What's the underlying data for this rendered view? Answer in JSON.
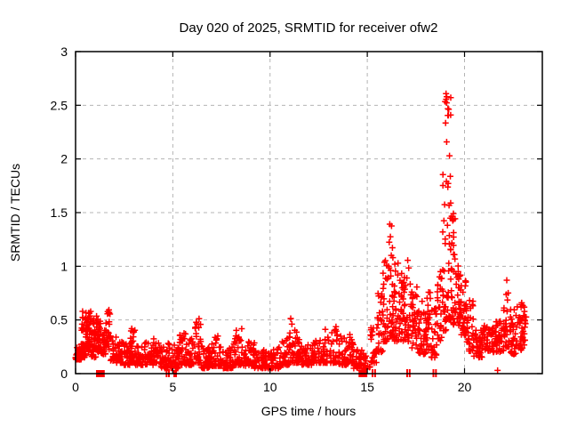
{
  "window": {
    "background_color": "#ffffff"
  },
  "chart_data": {
    "type": "scatter",
    "title": "Day 020 of 2025, SRMTID for receiver ofw2",
    "xlabel": "GPS time / hours",
    "ylabel": "SRMTID / TECUs",
    "xlim": [
      0,
      24
    ],
    "ylim": [
      0,
      3
    ],
    "xticks": [
      0,
      5,
      10,
      15,
      20
    ],
    "yticks": [
      0,
      0.5,
      1,
      1.5,
      2,
      2.5,
      3
    ],
    "grid": true,
    "legend_position": "none",
    "marker": {
      "shape": "plus",
      "color": "#ff0000",
      "size": 7
    },
    "series_name": "SRMTID",
    "colors": {
      "marker": "#ff0000",
      "grid": "#b4b4b4",
      "axis": "#000000",
      "background": "#ffffff"
    },
    "density_bins_comment": "Envelope of the ~2880-point 30s-cadence scatter: [x_start_hr, x_end_hr, y_min_TECU, y_max_TECU, n_points, low_bias]. Values read from gridlines.",
    "density_bins": [
      [
        0.0,
        0.3,
        0.13,
        0.28,
        28,
        1.5
      ],
      [
        0.3,
        0.55,
        0.15,
        0.58,
        40,
        1.3
      ],
      [
        0.55,
        0.8,
        0.18,
        0.58,
        40,
        1.3
      ],
      [
        0.8,
        1.05,
        0.15,
        0.52,
        35,
        1.4
      ],
      [
        1.05,
        1.3,
        0.2,
        0.56,
        35,
        1.3
      ],
      [
        1.3,
        1.55,
        0.18,
        0.5,
        25,
        1.5
      ],
      [
        1.55,
        1.8,
        0.22,
        0.6,
        30,
        1.3
      ],
      [
        1.8,
        2.1,
        0.12,
        0.35,
        25,
        1.8
      ],
      [
        2.1,
        2.5,
        0.1,
        0.3,
        30,
        1.8
      ],
      [
        2.5,
        2.8,
        0.08,
        0.28,
        30,
        1.8
      ],
      [
        2.8,
        3.05,
        0.1,
        0.42,
        28,
        2.0
      ],
      [
        3.05,
        3.5,
        0.08,
        0.26,
        35,
        1.8
      ],
      [
        3.5,
        4.0,
        0.08,
        0.3,
        38,
        1.8
      ],
      [
        4.0,
        4.3,
        0.1,
        0.35,
        25,
        2.0
      ],
      [
        4.3,
        4.75,
        0.05,
        0.25,
        35,
        1.8
      ],
      [
        4.75,
        5.3,
        0.05,
        0.3,
        40,
        1.8
      ],
      [
        5.3,
        5.8,
        0.08,
        0.38,
        40,
        2.0
      ],
      [
        5.8,
        6.1,
        0.08,
        0.35,
        25,
        1.8
      ],
      [
        6.1,
        6.45,
        0.1,
        0.52,
        30,
        2.2
      ],
      [
        6.45,
        7.0,
        0.05,
        0.26,
        45,
        1.8
      ],
      [
        7.0,
        7.5,
        0.07,
        0.36,
        40,
        2.0
      ],
      [
        7.5,
        8.1,
        0.05,
        0.26,
        45,
        1.8
      ],
      [
        8.1,
        8.6,
        0.08,
        0.42,
        40,
        2.2
      ],
      [
        8.6,
        9.2,
        0.07,
        0.3,
        45,
        1.8
      ],
      [
        9.2,
        10.0,
        0.05,
        0.24,
        55,
        1.8
      ],
      [
        10.0,
        10.6,
        0.05,
        0.26,
        45,
        1.8
      ],
      [
        10.6,
        11.0,
        0.08,
        0.36,
        30,
        2.0
      ],
      [
        11.0,
        11.3,
        0.1,
        0.54,
        25,
        2.2
      ],
      [
        11.3,
        11.6,
        0.1,
        0.42,
        22,
        2.0
      ],
      [
        11.6,
        12.2,
        0.08,
        0.28,
        45,
        1.8
      ],
      [
        12.2,
        12.8,
        0.1,
        0.32,
        45,
        1.8
      ],
      [
        12.8,
        13.5,
        0.1,
        0.45,
        50,
        2.0
      ],
      [
        13.5,
        14.0,
        0.08,
        0.35,
        38,
        1.8
      ],
      [
        14.0,
        14.3,
        0.1,
        0.42,
        22,
        2.0
      ],
      [
        14.3,
        14.8,
        0.05,
        0.25,
        35,
        1.8
      ],
      [
        14.8,
        15.15,
        0.04,
        0.2,
        15,
        1.8
      ],
      [
        15.15,
        15.5,
        0.1,
        0.5,
        22,
        1.5
      ],
      [
        15.5,
        15.8,
        0.2,
        0.75,
        28,
        1.5
      ],
      [
        15.8,
        16.1,
        0.3,
        1.1,
        30,
        1.7
      ],
      [
        16.1,
        16.3,
        0.35,
        1.5,
        25,
        1.8
      ],
      [
        16.3,
        16.6,
        0.3,
        1.1,
        30,
        1.7
      ],
      [
        16.6,
        16.9,
        0.3,
        1.0,
        32,
        1.6
      ],
      [
        16.9,
        17.3,
        0.3,
        1.06,
        35,
        1.8
      ],
      [
        17.3,
        17.6,
        0.22,
        0.85,
        30,
        1.7
      ],
      [
        17.6,
        18.0,
        0.18,
        0.68,
        35,
        1.6
      ],
      [
        18.0,
        18.3,
        0.22,
        0.76,
        28,
        1.7
      ],
      [
        18.3,
        18.6,
        0.15,
        0.62,
        25,
        1.6
      ],
      [
        18.6,
        18.85,
        0.3,
        0.95,
        22,
        1.5
      ],
      [
        18.85,
        19.05,
        0.4,
        2.0,
        25,
        2.4
      ],
      [
        19.05,
        19.3,
        0.5,
        2.62,
        40,
        2.2
      ],
      [
        19.0,
        19.2,
        2.3,
        2.62,
        8,
        1.0
      ],
      [
        19.3,
        19.55,
        0.45,
        1.5,
        30,
        2.0
      ],
      [
        19.55,
        19.8,
        0.45,
        1.05,
        30,
        1.5
      ],
      [
        19.8,
        20.1,
        0.35,
        0.95,
        32,
        1.6
      ],
      [
        20.1,
        20.45,
        0.2,
        0.7,
        28,
        1.7
      ],
      [
        20.45,
        20.9,
        0.15,
        0.42,
        35,
        1.5
      ],
      [
        20.9,
        21.5,
        0.2,
        0.45,
        45,
        1.5
      ],
      [
        21.5,
        22.0,
        0.2,
        0.5,
        40,
        1.6
      ],
      [
        22.0,
        22.3,
        0.25,
        0.9,
        28,
        2.0
      ],
      [
        22.3,
        22.7,
        0.18,
        0.6,
        35,
        1.6
      ],
      [
        22.7,
        23.1,
        0.22,
        0.68,
        35,
        1.5
      ],
      [
        23.1,
        23.25,
        0.3,
        0.55,
        8,
        1.5
      ]
    ],
    "outlier_points": [
      [
        21.7,
        0.03
      ]
    ],
    "axis_event_squares_comment": "Solid red squares drawn on the y=0 axis line, [x_start_hr, x_end_hr].",
    "axis_event_squares": [
      [
        1.05,
        1.5
      ],
      [
        5.03,
        5.2
      ],
      [
        14.55,
        15.0
      ]
    ],
    "axis_event_ticks_comment": "Short vertical red double tick marks crossing the y=0 axis line, x in hours.",
    "axis_event_ticks": [
      4.68,
      4.8,
      15.27,
      15.4,
      17.05,
      17.18,
      18.4,
      18.53
    ]
  }
}
